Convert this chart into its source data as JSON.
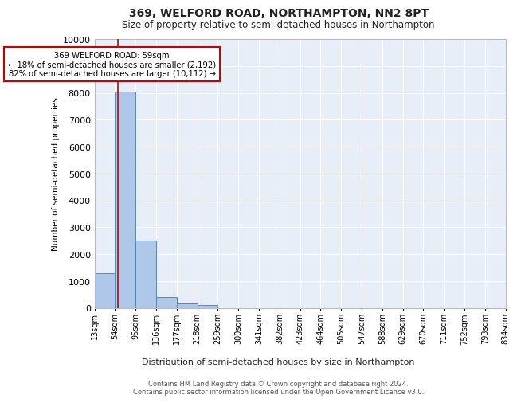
{
  "title": "369, WELFORD ROAD, NORTHAMPTON, NN2 8PT",
  "subtitle": "Size of property relative to semi-detached houses in Northampton",
  "xlabel": "Distribution of semi-detached houses by size in Northampton",
  "ylabel": "Number of semi-detached properties",
  "bin_labels": [
    "13sqm",
    "54sqm",
    "95sqm",
    "136sqm",
    "177sqm",
    "218sqm",
    "259sqm",
    "300sqm",
    "341sqm",
    "382sqm",
    "423sqm",
    "464sqm",
    "505sqm",
    "547sqm",
    "588sqm",
    "629sqm",
    "670sqm",
    "711sqm",
    "752sqm",
    "793sqm",
    "834sqm"
  ],
  "bar_heights": [
    1300,
    8050,
    2500,
    400,
    150,
    100,
    0,
    0,
    0,
    0,
    0,
    0,
    0,
    0,
    0,
    0,
    0,
    0,
    0,
    0
  ],
  "bar_color": "#aec6e8",
  "bar_edge_color": "#5588bb",
  "ylim": [
    0,
    10000
  ],
  "yticks": [
    0,
    1000,
    2000,
    3000,
    4000,
    5000,
    6000,
    7000,
    8000,
    9000,
    10000
  ],
  "vline_color": "#cc0000",
  "annotation_line1": "369 WELFORD ROAD: 59sqm",
  "annotation_line2": "← 18% of semi-detached houses are smaller (2,192)",
  "annotation_line3": "82% of semi-detached houses are larger (10,112) →",
  "annotation_box_color": "#cc0000",
  "footer_line1": "Contains HM Land Registry data © Crown copyright and database right 2024.",
  "footer_line2": "Contains public sector information licensed under the Open Government Licence v3.0.",
  "bg_color": "#ffffff",
  "plot_bg_color": "#e8eef8",
  "grid_color": "#ffffff",
  "title_fontsize": 10,
  "subtitle_fontsize": 8.5
}
